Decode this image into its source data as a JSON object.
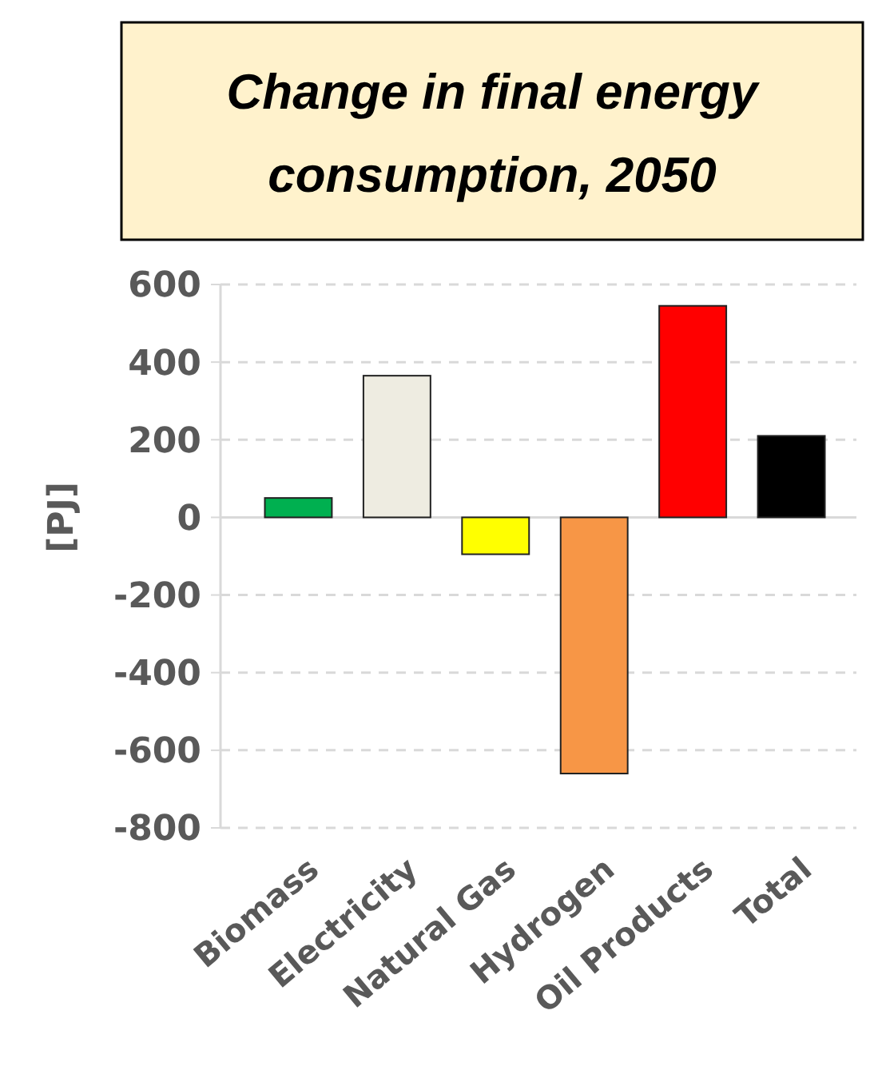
{
  "chart_data": {
    "type": "bar",
    "title": "Change in final energy consumption, 2050",
    "ylabel": "[PJ]",
    "categories": [
      "Biomass",
      "Electricity",
      "Natural Gas",
      "Hydrogen",
      "Oil Products",
      "Total"
    ],
    "values": [
      50,
      365,
      -95,
      -660,
      545,
      210
    ],
    "colors": [
      "#00b050",
      "#eeece1",
      "#ffff00",
      "#f79646",
      "#ff0000",
      "#000000"
    ],
    "ylim": [
      -800,
      600
    ],
    "yticks": [
      -800,
      -600,
      -400,
      -200,
      0,
      200,
      400,
      600
    ],
    "grid": "y"
  }
}
